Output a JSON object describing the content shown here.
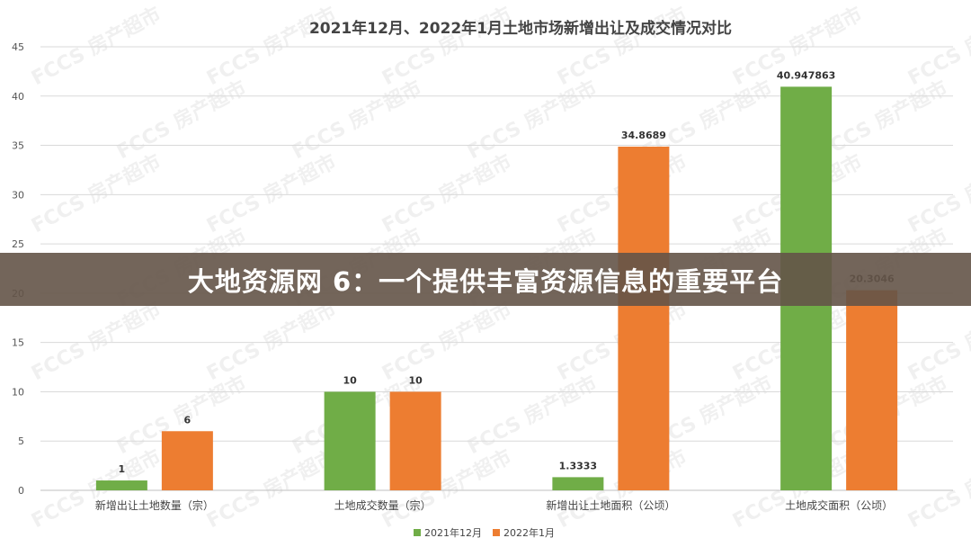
{
  "banner": {
    "text": "大地资源网 6：一个提供丰富资源信息的重要平台"
  },
  "watermark": {
    "text": "FCCS 房产超市"
  },
  "colors": {
    "series1": "#70AD47",
    "series2": "#ED7D31",
    "grid": "#D9D9D9",
    "axis": "#BFBFBF"
  },
  "chart_data": {
    "type": "bar",
    "title": "2021年12月、2022年1月土地市场新增出让及成交情况对比",
    "xlabel": "",
    "ylabel": "",
    "categories": [
      "新增出让土地数量（宗）",
      "土地成交数量（宗）",
      "新增出让土地面积（公顷）",
      "土地成交面积（公顷）"
    ],
    "series": [
      {
        "name": "2021年12月",
        "values": [
          1,
          10,
          1.3333,
          40.947863
        ],
        "labels": [
          "1",
          "10",
          "1.3333",
          "40.947863"
        ]
      },
      {
        "name": "2022年1月",
        "values": [
          6,
          10,
          34.8689,
          20.3046
        ],
        "labels": [
          "6",
          "10",
          "34.8689",
          "20.3046"
        ]
      }
    ],
    "ylim": [
      0,
      45
    ],
    "yticks": [
      0,
      5,
      10,
      15,
      20,
      25,
      30,
      35,
      40,
      45
    ],
    "grid": true,
    "legend": "bottom"
  }
}
